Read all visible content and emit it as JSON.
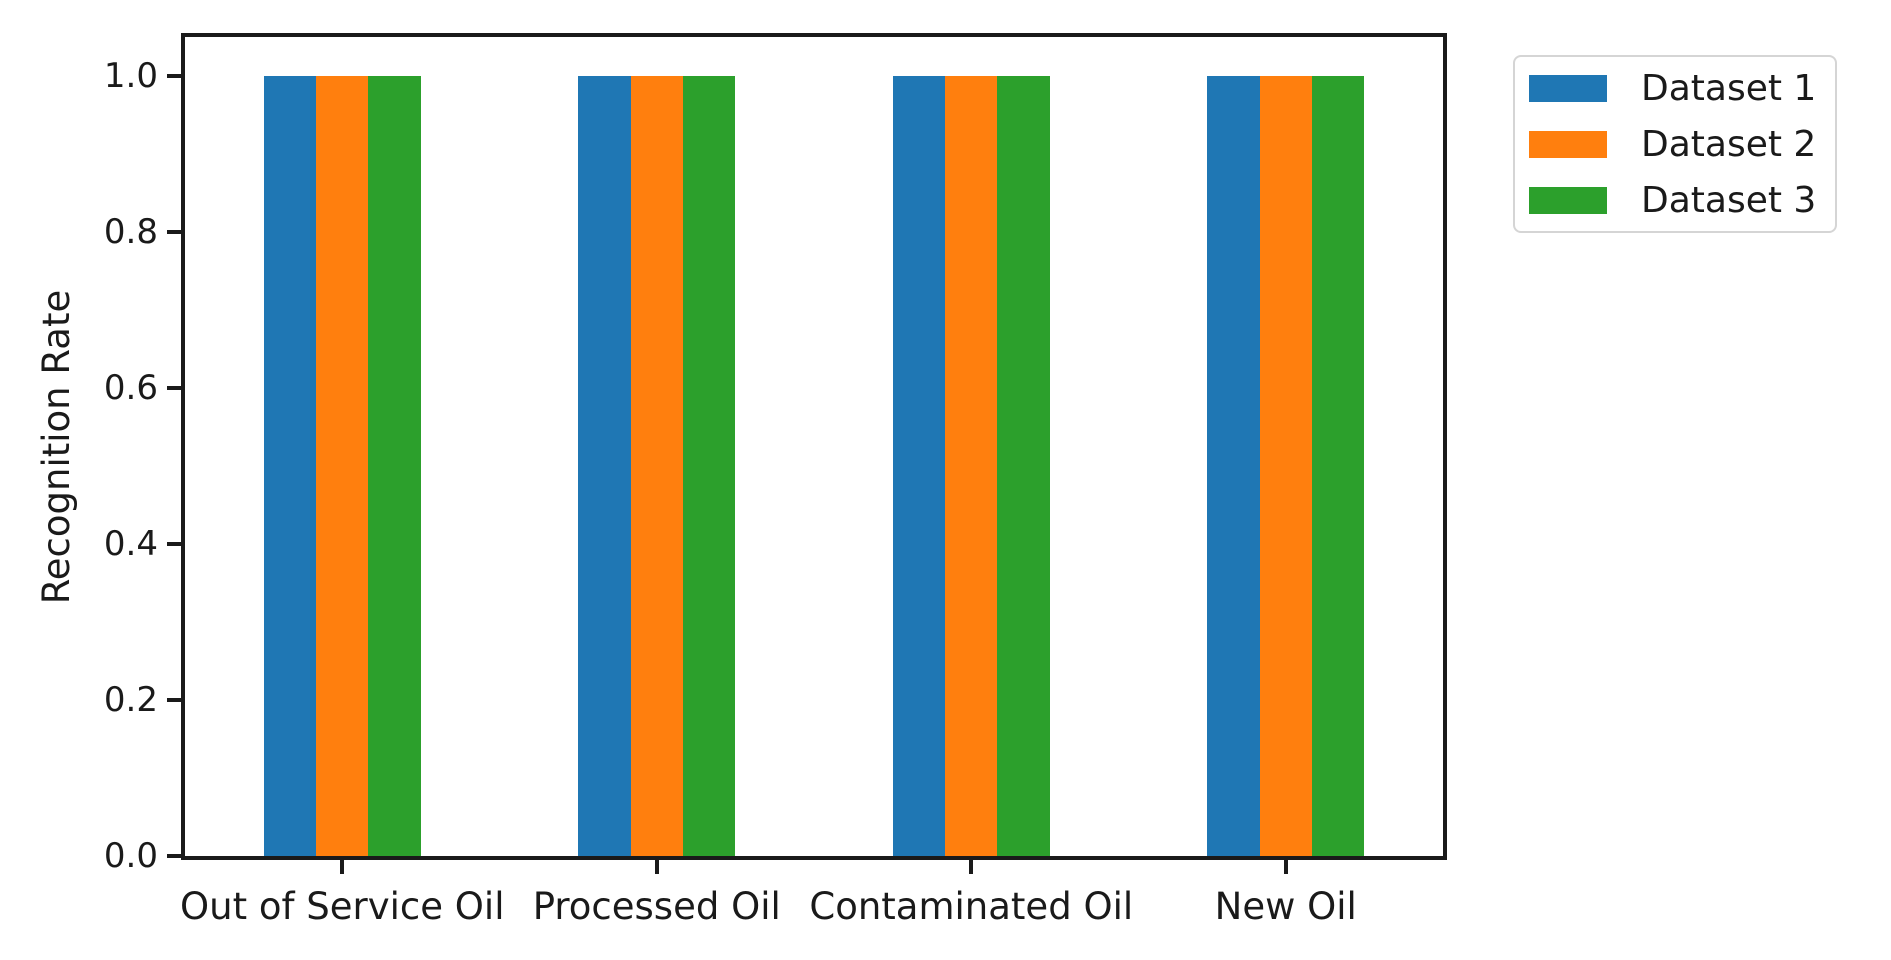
{
  "chart_data": {
    "type": "bar",
    "title": "",
    "categories": [
      "Out of Service Oil",
      "Processed Oil",
      "Contaminated Oil",
      "New Oil"
    ],
    "series": [
      {
        "name": "Dataset 1",
        "color": "#1f77b4",
        "values": [
          1.0,
          1.0,
          1.0,
          1.0
        ]
      },
      {
        "name": "Dataset 2",
        "color": "#ff7f0e",
        "values": [
          1.0,
          1.0,
          1.0,
          1.0
        ]
      },
      {
        "name": "Dataset 3",
        "color": "#2ca02c",
        "values": [
          1.0,
          1.0,
          1.0,
          1.0
        ]
      }
    ],
    "xlabel": "",
    "ylabel": "Recognition Rate",
    "ylim": [
      0,
      1.05
    ],
    "xlim": [
      -0.5,
      3.5
    ],
    "yticks": [
      {
        "value": 0.0,
        "label": "0.0"
      },
      {
        "value": 0.2,
        "label": "0.2"
      },
      {
        "value": 0.4,
        "label": "0.4"
      },
      {
        "value": 0.6,
        "label": "0.6"
      },
      {
        "value": 0.8,
        "label": "0.8"
      },
      {
        "value": 1.0,
        "label": "1.0"
      }
    ],
    "group_width": 0.5,
    "grid": false,
    "legend": {
      "position": "outside-upper-right",
      "entries": [
        "Dataset 1",
        "Dataset 2",
        "Dataset 3"
      ]
    },
    "colors": {
      "axis": "#1a1a1a",
      "text": "#1a1a1a",
      "legend_border": "#d5d5d5",
      "background": "#ffffff"
    }
  }
}
